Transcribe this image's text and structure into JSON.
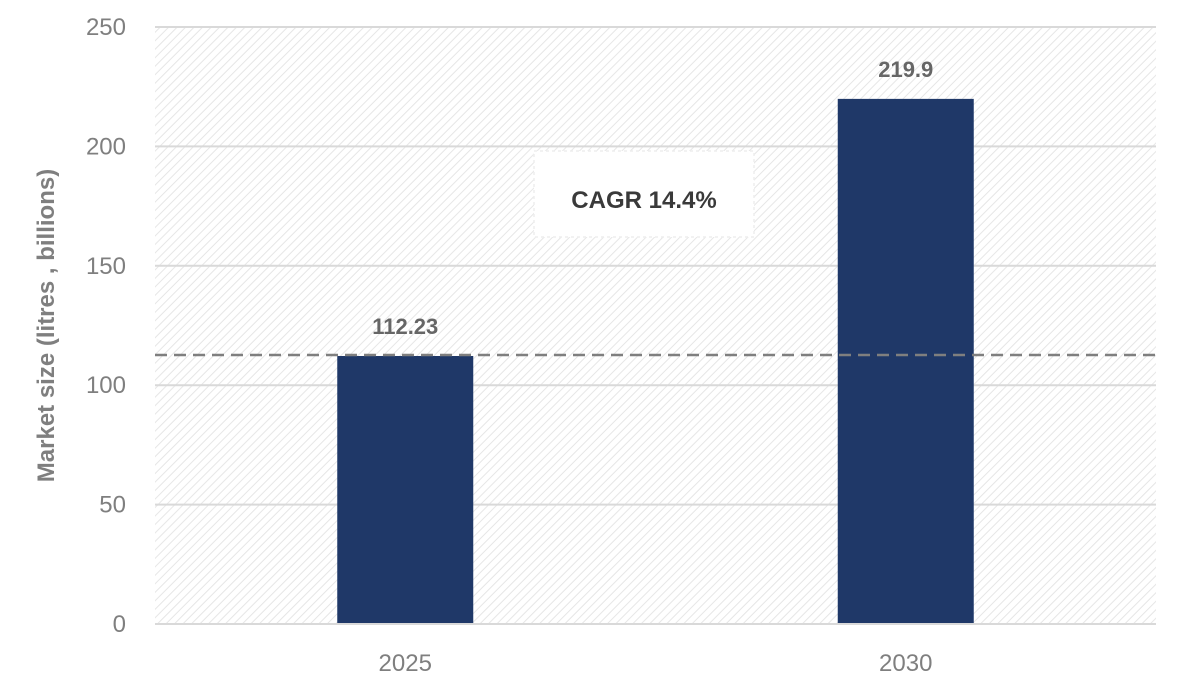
{
  "chart_data": {
    "type": "bar",
    "categories": [
      "2025",
      "2030"
    ],
    "values": [
      112.23,
      219.9
    ],
    "data_labels": [
      "112.23",
      "219.9"
    ],
    "ylabel": "Market size (litres , billions)",
    "ylim": [
      0,
      250
    ],
    "yticks": [
      0,
      50,
      100,
      150,
      200,
      250
    ],
    "grid": true,
    "reference_line": {
      "value": 112.23,
      "style": "dashed"
    },
    "annotation": "CAGR 14.4%",
    "colors": {
      "bar": "#1f3868",
      "grid": "#d9d9d9",
      "reference_line": "#7f7f7f",
      "hatch": "#e6e6e6"
    }
  }
}
